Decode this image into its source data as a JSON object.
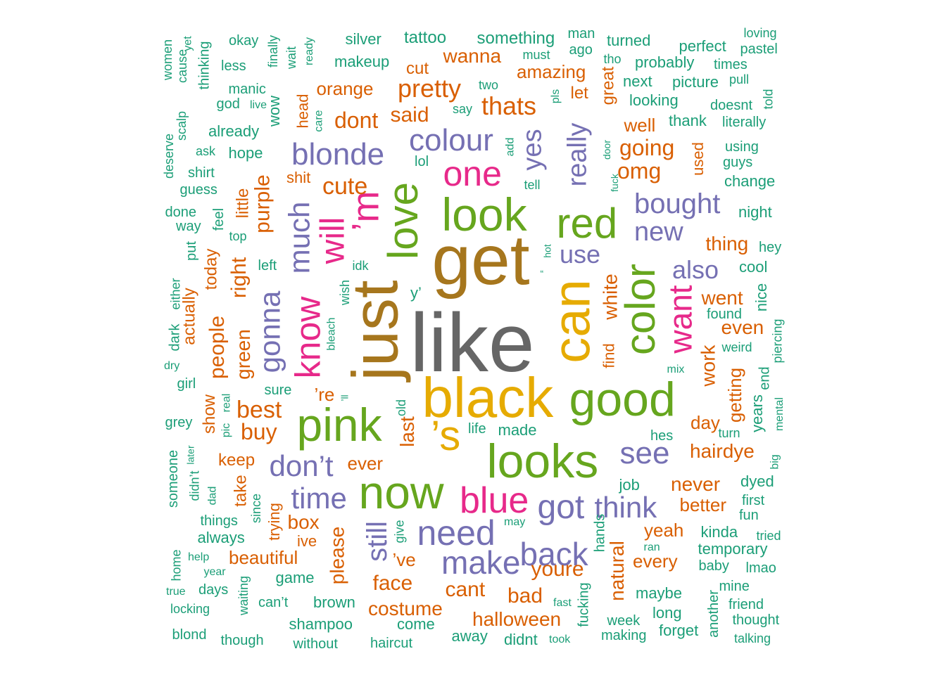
{
  "colors": {
    "teal": "#1b9e77",
    "orange": "#d95f02",
    "purple": "#7570b3",
    "magenta": "#e7298a",
    "green": "#66a61e",
    "gold": "#e6ab02",
    "brown": "#a6761d",
    "gray": "#666666"
  },
  "words": [
    {
      "text": "like",
      "color": "gray"
    },
    {
      "text": "get",
      "color": "brown"
    },
    {
      "text": "just",
      "color": "brown"
    },
    {
      "text": "black",
      "color": "gold"
    },
    {
      "text": "can",
      "color": "gold"
    },
    {
      "text": "good",
      "color": "green"
    },
    {
      "text": "looks",
      "color": "green"
    },
    {
      "text": "look",
      "color": "green"
    },
    {
      "text": "pink",
      "color": "green"
    },
    {
      "text": "now",
      "color": "green"
    },
    {
      "text": "love",
      "color": "green"
    },
    {
      "text": "’s",
      "color": "gold"
    },
    {
      "text": "red",
      "color": "green"
    },
    {
      "text": "color",
      "color": "green"
    },
    {
      "text": "’m",
      "color": "magenta"
    },
    {
      "text": "one",
      "color": "magenta"
    },
    {
      "text": "blue",
      "color": "magenta"
    },
    {
      "text": "know",
      "color": "magenta"
    },
    {
      "text": "will",
      "color": "magenta"
    },
    {
      "text": "want",
      "color": "magenta"
    },
    {
      "text": "need",
      "color": "purple"
    },
    {
      "text": "got",
      "color": "purple"
    },
    {
      "text": "make",
      "color": "purple"
    },
    {
      "text": "back",
      "color": "purple"
    },
    {
      "text": "blonde",
      "color": "purple"
    },
    {
      "text": "colour",
      "color": "purple"
    },
    {
      "text": "gonna",
      "color": "purple"
    },
    {
      "text": "much",
      "color": "purple"
    },
    {
      "text": "don’t",
      "color": "purple"
    },
    {
      "text": "time",
      "color": "purple"
    },
    {
      "text": "see",
      "color": "purple"
    },
    {
      "text": "think",
      "color": "purple"
    },
    {
      "text": "really",
      "color": "purple"
    },
    {
      "text": "yes",
      "color": "purple"
    },
    {
      "text": "bought",
      "color": "purple"
    },
    {
      "text": "new",
      "color": "purple"
    },
    {
      "text": "use",
      "color": "purple"
    },
    {
      "text": "also",
      "color": "purple"
    },
    {
      "text": "still",
      "color": "purple"
    },
    {
      "text": "pretty",
      "color": "orange"
    },
    {
      "text": "thats",
      "color": "orange"
    },
    {
      "text": "dont",
      "color": "orange"
    },
    {
      "text": "said",
      "color": "orange"
    },
    {
      "text": "cute",
      "color": "orange"
    },
    {
      "text": "going",
      "color": "orange"
    },
    {
      "text": "omg",
      "color": "orange"
    },
    {
      "text": "best",
      "color": "orange"
    },
    {
      "text": "buy",
      "color": "orange"
    },
    {
      "text": "purple",
      "color": "orange"
    },
    {
      "text": "right",
      "color": "orange"
    },
    {
      "text": "people",
      "color": "orange"
    },
    {
      "text": "green",
      "color": "orange"
    },
    {
      "text": "face",
      "color": "orange"
    },
    {
      "text": "cant",
      "color": "orange"
    },
    {
      "text": "bad",
      "color": "orange"
    },
    {
      "text": "youre",
      "color": "orange"
    },
    {
      "text": "natural",
      "color": "orange"
    },
    {
      "text": "halloween",
      "color": "orange"
    },
    {
      "text": "costume",
      "color": "orange"
    },
    {
      "text": "beautiful",
      "color": "orange"
    },
    {
      "text": "box",
      "color": "orange"
    },
    {
      "text": "please",
      "color": "orange"
    },
    {
      "text": "hairdye",
      "color": "orange"
    },
    {
      "text": "never",
      "color": "orange"
    },
    {
      "text": "better",
      "color": "orange"
    },
    {
      "text": "yeah",
      "color": "orange"
    },
    {
      "text": "every",
      "color": "orange"
    },
    {
      "text": "work",
      "color": "orange"
    },
    {
      "text": "went",
      "color": "orange"
    },
    {
      "text": "even",
      "color": "orange"
    },
    {
      "text": "thing",
      "color": "orange"
    },
    {
      "text": "getting",
      "color": "orange"
    },
    {
      "text": "day",
      "color": "orange"
    },
    {
      "text": "keep",
      "color": "orange"
    },
    {
      "text": "ever",
      "color": "orange"
    },
    {
      "text": "last",
      "color": "orange"
    },
    {
      "text": "’re",
      "color": "orange"
    },
    {
      "text": "’ve",
      "color": "orange"
    },
    {
      "text": "wanna",
      "color": "orange"
    },
    {
      "text": "amazing",
      "color": "orange"
    },
    {
      "text": "orange",
      "color": "orange"
    },
    {
      "text": "cut",
      "color": "orange"
    },
    {
      "text": "head",
      "color": "orange"
    },
    {
      "text": "shit",
      "color": "orange"
    },
    {
      "text": "little",
      "color": "orange"
    },
    {
      "text": "today",
      "color": "orange"
    },
    {
      "text": "actually",
      "color": "orange"
    },
    {
      "text": "show",
      "color": "orange"
    },
    {
      "text": "take",
      "color": "orange"
    },
    {
      "text": "trying",
      "color": "orange"
    },
    {
      "text": "ive",
      "color": "orange"
    },
    {
      "text": "white",
      "color": "orange"
    },
    {
      "text": "find",
      "color": "orange"
    },
    {
      "text": "well",
      "color": "orange"
    },
    {
      "text": "great",
      "color": "orange"
    },
    {
      "text": "let",
      "color": "orange"
    },
    {
      "text": "used",
      "color": "orange"
    },
    {
      "text": "silver",
      "color": "teal"
    },
    {
      "text": "tattoo",
      "color": "teal"
    },
    {
      "text": "something",
      "color": "teal"
    },
    {
      "text": "makeup",
      "color": "teal"
    },
    {
      "text": "man",
      "color": "teal"
    },
    {
      "text": "ago",
      "color": "teal"
    },
    {
      "text": "must",
      "color": "teal"
    },
    {
      "text": "turned",
      "color": "teal"
    },
    {
      "text": "tho",
      "color": "teal"
    },
    {
      "text": "probably",
      "color": "teal"
    },
    {
      "text": "perfect",
      "color": "teal"
    },
    {
      "text": "loving",
      "color": "teal"
    },
    {
      "text": "pastel",
      "color": "teal"
    },
    {
      "text": "times",
      "color": "teal"
    },
    {
      "text": "pull",
      "color": "teal"
    },
    {
      "text": "next",
      "color": "teal"
    },
    {
      "text": "picture",
      "color": "teal"
    },
    {
      "text": "looking",
      "color": "teal"
    },
    {
      "text": "doesnt",
      "color": "teal"
    },
    {
      "text": "told",
      "color": "teal"
    },
    {
      "text": "thank",
      "color": "teal"
    },
    {
      "text": "literally",
      "color": "teal"
    },
    {
      "text": "using",
      "color": "teal"
    },
    {
      "text": "guys",
      "color": "teal"
    },
    {
      "text": "change",
      "color": "teal"
    },
    {
      "text": "night",
      "color": "teal"
    },
    {
      "text": "hey",
      "color": "teal"
    },
    {
      "text": "cool",
      "color": "teal"
    },
    {
      "text": "nice",
      "color": "teal"
    },
    {
      "text": "found",
      "color": "teal"
    },
    {
      "text": "weird",
      "color": "teal"
    },
    {
      "text": "piercing",
      "color": "teal"
    },
    {
      "text": "end",
      "color": "teal"
    },
    {
      "text": "years",
      "color": "teal"
    },
    {
      "text": "mental",
      "color": "teal"
    },
    {
      "text": "turn",
      "color": "teal"
    },
    {
      "text": "big",
      "color": "teal"
    },
    {
      "text": "dyed",
      "color": "teal"
    },
    {
      "text": "first",
      "color": "teal"
    },
    {
      "text": "fun",
      "color": "teal"
    },
    {
      "text": "tried",
      "color": "teal"
    },
    {
      "text": "kinda",
      "color": "teal"
    },
    {
      "text": "temporary",
      "color": "teal"
    },
    {
      "text": "baby",
      "color": "teal"
    },
    {
      "text": "lmao",
      "color": "teal"
    },
    {
      "text": "mine",
      "color": "teal"
    },
    {
      "text": "friend",
      "color": "teal"
    },
    {
      "text": "another",
      "color": "teal"
    },
    {
      "text": "thought",
      "color": "teal"
    },
    {
      "text": "talking",
      "color": "teal"
    },
    {
      "text": "forget",
      "color": "teal"
    },
    {
      "text": "long",
      "color": "teal"
    },
    {
      "text": "maybe",
      "color": "teal"
    },
    {
      "text": "week",
      "color": "teal"
    },
    {
      "text": "making",
      "color": "teal"
    },
    {
      "text": "fucking",
      "color": "teal"
    },
    {
      "text": "fast",
      "color": "teal"
    },
    {
      "text": "took",
      "color": "teal"
    },
    {
      "text": "didnt",
      "color": "teal"
    },
    {
      "text": "away",
      "color": "teal"
    },
    {
      "text": "come",
      "color": "teal"
    },
    {
      "text": "haircut",
      "color": "teal"
    },
    {
      "text": "without",
      "color": "teal"
    },
    {
      "text": "shampoo",
      "color": "teal"
    },
    {
      "text": "brown",
      "color": "teal"
    },
    {
      "text": "can’t",
      "color": "teal"
    },
    {
      "text": "game",
      "color": "teal"
    },
    {
      "text": "waiting",
      "color": "teal"
    },
    {
      "text": "though",
      "color": "teal"
    },
    {
      "text": "blond",
      "color": "teal"
    },
    {
      "text": "locking",
      "color": "teal"
    },
    {
      "text": "true",
      "color": "teal"
    },
    {
      "text": "days",
      "color": "teal"
    },
    {
      "text": "year",
      "color": "teal"
    },
    {
      "text": "help",
      "color": "teal"
    },
    {
      "text": "home",
      "color": "teal"
    },
    {
      "text": "always",
      "color": "teal"
    },
    {
      "text": "things",
      "color": "teal"
    },
    {
      "text": "since",
      "color": "teal"
    },
    {
      "text": "dad",
      "color": "teal"
    },
    {
      "text": "didn’t",
      "color": "teal"
    },
    {
      "text": "someone",
      "color": "teal"
    },
    {
      "text": "later",
      "color": "teal"
    },
    {
      "text": "grey",
      "color": "teal"
    },
    {
      "text": "pic",
      "color": "teal"
    },
    {
      "text": "real",
      "color": "teal"
    },
    {
      "text": "girl",
      "color": "teal"
    },
    {
      "text": "sure",
      "color": "teal"
    },
    {
      "text": "dry",
      "color": "teal"
    },
    {
      "text": "dark",
      "color": "teal"
    },
    {
      "text": "either",
      "color": "teal"
    },
    {
      "text": "left",
      "color": "teal"
    },
    {
      "text": "put",
      "color": "teal"
    },
    {
      "text": "way",
      "color": "teal"
    },
    {
      "text": "done",
      "color": "teal"
    },
    {
      "text": "feel",
      "color": "teal"
    },
    {
      "text": "top",
      "color": "teal"
    },
    {
      "text": "guess",
      "color": "teal"
    },
    {
      "text": "shirt",
      "color": "teal"
    },
    {
      "text": "ask",
      "color": "teal"
    },
    {
      "text": "hope",
      "color": "teal"
    },
    {
      "text": "deserve",
      "color": "teal"
    },
    {
      "text": "scalp",
      "color": "teal"
    },
    {
      "text": "already",
      "color": "teal"
    },
    {
      "text": "god",
      "color": "teal"
    },
    {
      "text": "live",
      "color": "teal"
    },
    {
      "text": "manic",
      "color": "teal"
    },
    {
      "text": "wow",
      "color": "teal"
    },
    {
      "text": "women",
      "color": "teal"
    },
    {
      "text": "cause",
      "color": "teal"
    },
    {
      "text": "yet",
      "color": "teal"
    },
    {
      "text": "thinking",
      "color": "teal"
    },
    {
      "text": "less",
      "color": "teal"
    },
    {
      "text": "okay",
      "color": "teal"
    },
    {
      "text": "finally",
      "color": "teal"
    },
    {
      "text": "wait",
      "color": "teal"
    },
    {
      "text": "ready",
      "color": "teal"
    },
    {
      "text": "care",
      "color": "teal"
    },
    {
      "text": "two",
      "color": "teal"
    },
    {
      "text": "say",
      "color": "teal"
    },
    {
      "text": "lol",
      "color": "teal"
    },
    {
      "text": "add",
      "color": "teal"
    },
    {
      "text": "tell",
      "color": "teal"
    },
    {
      "text": "pls",
      "color": "teal"
    },
    {
      "text": "door",
      "color": "teal"
    },
    {
      "text": "fuck",
      "color": "teal"
    },
    {
      "text": "hot",
      "color": "teal"
    },
    {
      "text": "“",
      "color": "teal"
    },
    {
      "text": "idk",
      "color": "teal"
    },
    {
      "text": "y’",
      "color": "teal"
    },
    {
      "text": "wish",
      "color": "teal"
    },
    {
      "text": "bleach",
      "color": "teal"
    },
    {
      "text": "’ll",
      "color": "teal"
    },
    {
      "text": "old",
      "color": "teal"
    },
    {
      "text": "mix",
      "color": "teal"
    },
    {
      "text": "life",
      "color": "teal"
    },
    {
      "text": "made",
      "color": "teal"
    },
    {
      "text": "hes",
      "color": "teal"
    },
    {
      "text": "job",
      "color": "teal"
    },
    {
      "text": "may",
      "color": "teal"
    },
    {
      "text": "give",
      "color": "teal"
    },
    {
      "text": "ran",
      "color": "teal"
    },
    {
      "text": "hands",
      "color": "teal"
    }
  ]
}
